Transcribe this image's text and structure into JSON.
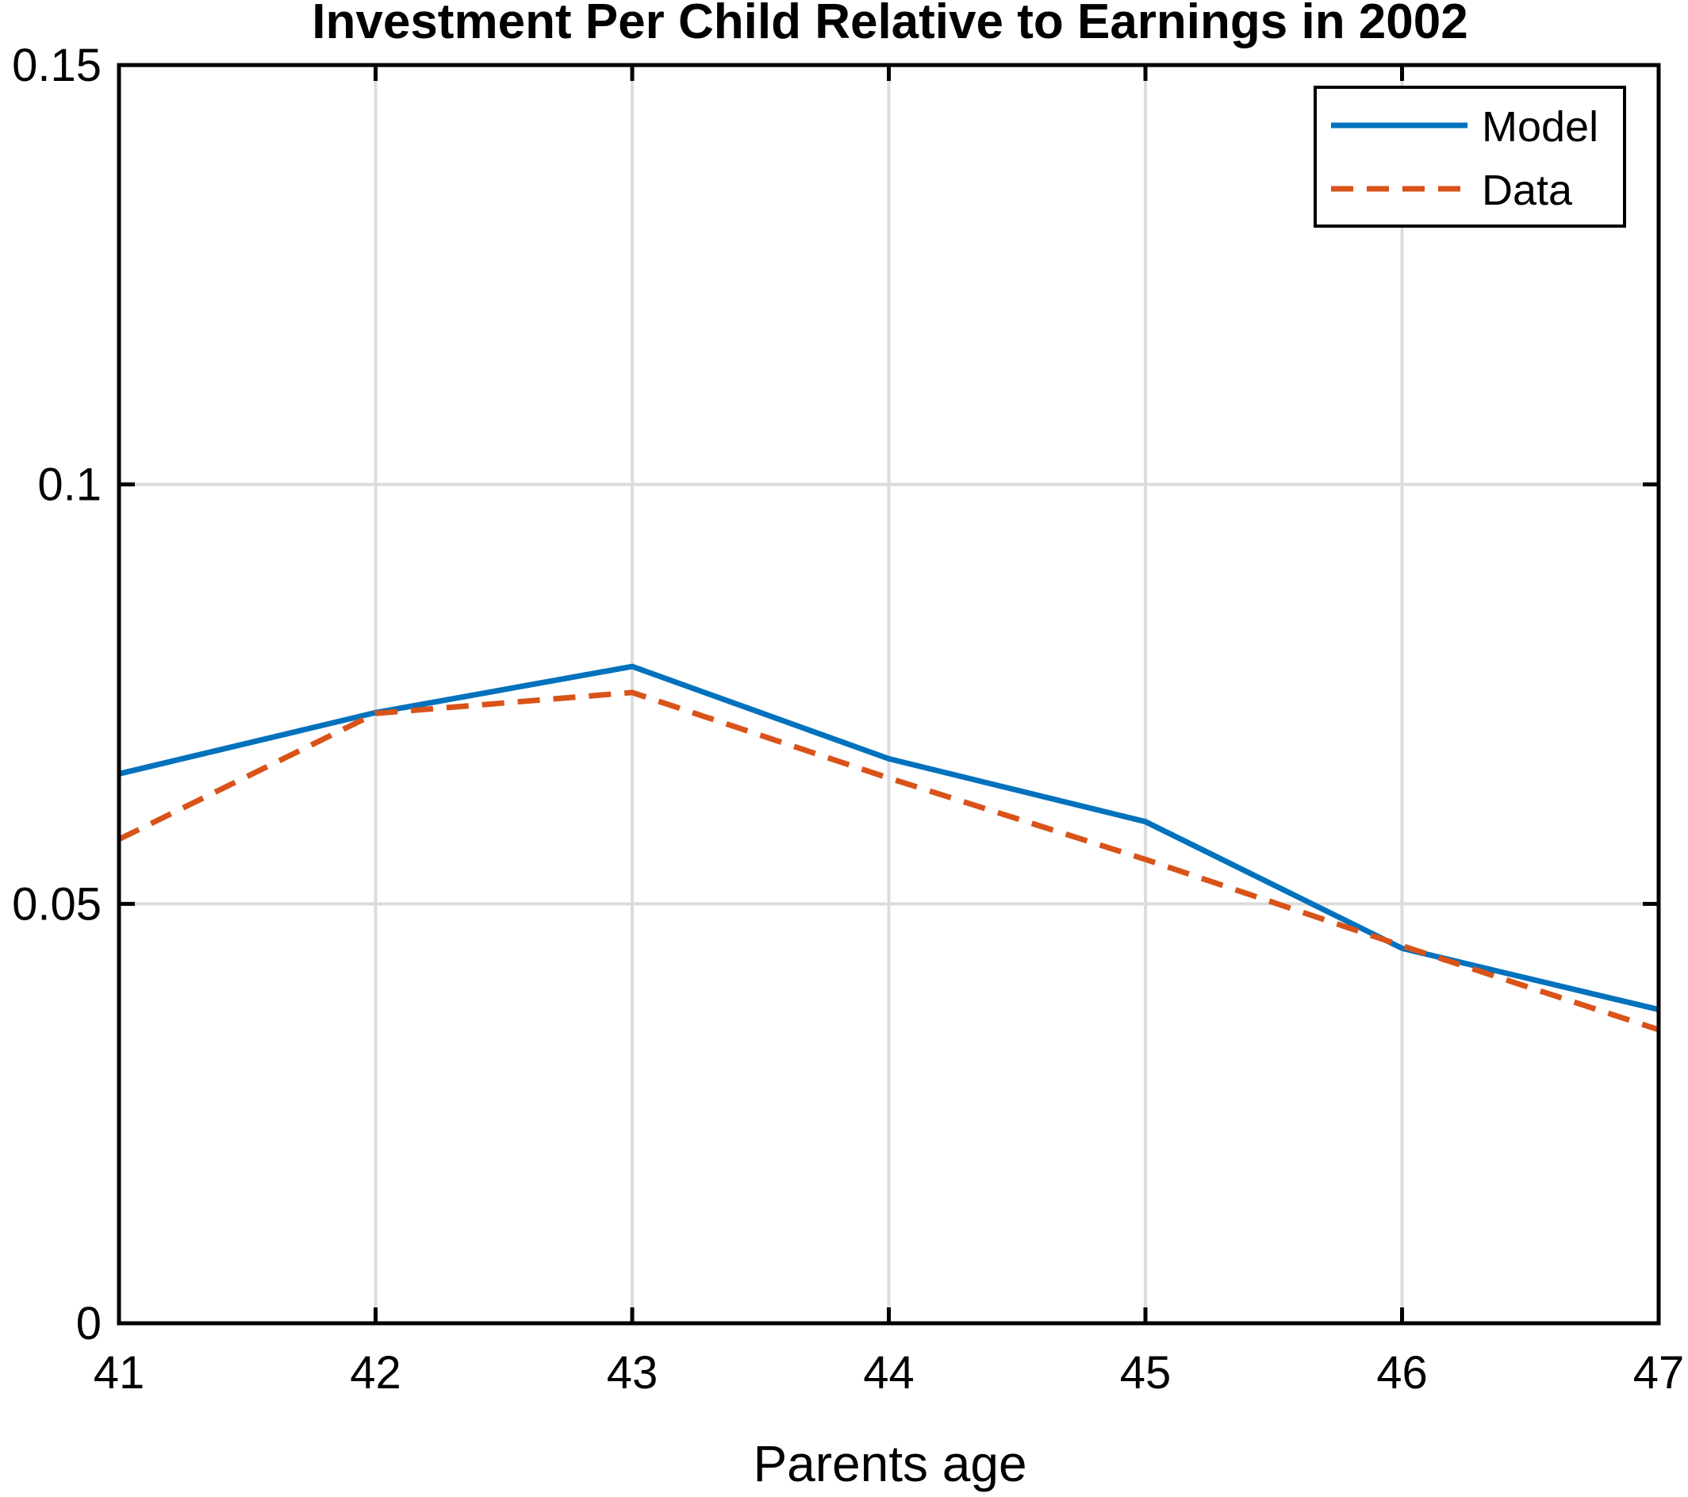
{
  "chart_data": {
    "type": "line",
    "title": "Investment Per Child Relative to Earnings in 2002",
    "xlabel": "Parents age",
    "ylabel": "",
    "x": [
      41,
      42,
      43,
      44,
      45,
      46,
      47
    ],
    "xlim": [
      41,
      47
    ],
    "ylim": [
      0,
      0.15
    ],
    "xticks": [
      41,
      42,
      43,
      44,
      45,
      46,
      47
    ],
    "xtick_labels": [
      "41",
      "42",
      "43",
      "44",
      "45",
      "46",
      "47"
    ],
    "yticks": [
      0,
      0.05,
      0.1,
      0.15
    ],
    "ytick_labels": [
      "0",
      "0.05",
      "0.1",
      "0.15"
    ],
    "grid": true,
    "legend_position": "top-right",
    "series": [
      {
        "name": "Model",
        "values": [
          0.0655,
          0.0728,
          0.0783,
          0.0673,
          0.0598,
          0.0447,
          0.0374
        ],
        "color": "#0072BD",
        "style": "solid"
      },
      {
        "name": "Data",
        "values": [
          0.0577,
          0.0727,
          0.0752,
          0.065,
          0.0553,
          0.045,
          0.035
        ],
        "color": "#D95319",
        "style": "dashed"
      }
    ]
  }
}
